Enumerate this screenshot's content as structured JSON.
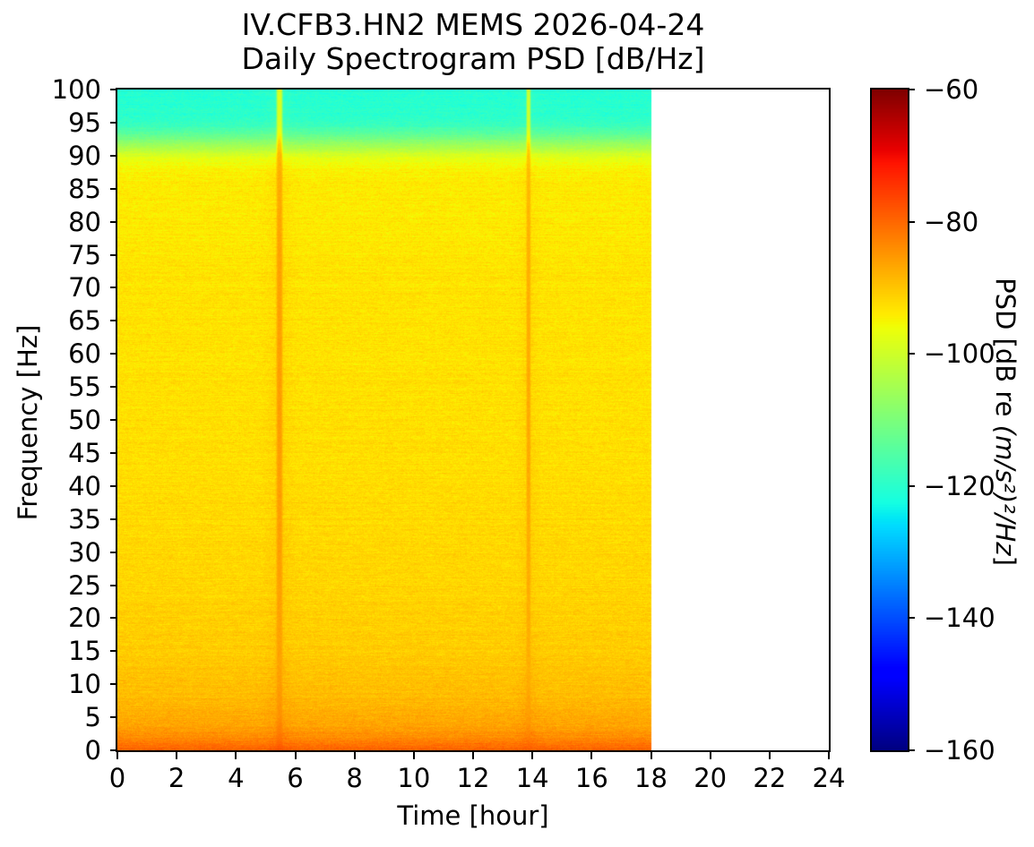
{
  "title": {
    "line1": "IV.CFB3.HN2 MEMS 2026-04-24",
    "line2": "Daily Spectrogram PSD [dB/Hz]"
  },
  "chart_data": {
    "type": "heatmap",
    "subtype": "spectrogram",
    "title": "IV.CFB3.HN2 MEMS 2026-04-24\nDaily Spectrogram PSD [dB/Hz]",
    "xlabel": "Time [hour]",
    "ylabel": "Frequency [Hz]",
    "colorbar_label": {
      "prefix": "PSD [dB re ",
      "math": "(m/s²)²/Hz",
      "suffix": "]"
    },
    "colormap": "jet",
    "xlim": [
      0,
      24
    ],
    "ylim": [
      0,
      100
    ],
    "clim": [
      -160,
      -60
    ],
    "x_ticks": [
      0,
      2,
      4,
      6,
      8,
      10,
      12,
      14,
      16,
      18,
      20,
      22,
      24
    ],
    "y_ticks": [
      0,
      5,
      10,
      15,
      20,
      25,
      30,
      35,
      40,
      45,
      50,
      55,
      60,
      65,
      70,
      75,
      80,
      85,
      90,
      95,
      100
    ],
    "colorbar_ticks": [
      {
        "value": -60,
        "label": "−60"
      },
      {
        "value": -80,
        "label": "−80"
      },
      {
        "value": -100,
        "label": "−100"
      },
      {
        "value": -120,
        "label": "−120"
      },
      {
        "value": -140,
        "label": "−140"
      },
      {
        "value": -160,
        "label": "−160"
      }
    ],
    "data_extent_hours": [
      0,
      18
    ],
    "background_profile": {
      "freq_hz": [
        0,
        0.8,
        2,
        4,
        8,
        15,
        25,
        45,
        70,
        85,
        87,
        88,
        89,
        89.8,
        90.5,
        91.7,
        93,
        94.6,
        95.8,
        100
      ],
      "psd_db": [
        -79.2,
        -81,
        -84,
        -86.5,
        -88.8,
        -90.6,
        -91.6,
        -92.5,
        -93.1,
        -93.8,
        -94.2,
        -95,
        -96.3,
        -98,
        -101,
        -106.5,
        -112.5,
        -118,
        -119.9,
        -120.6
      ]
    },
    "noise_db_sigma": 1.3,
    "events": [
      {
        "time_hour": 5.47,
        "sigma_hours": 0.085,
        "halo_boost_db": 1.2,
        "halo_sigma_hours": 0.28,
        "psd_profile": {
          "freq_hz": [
            0,
            2,
            5,
            12,
            30,
            50,
            75,
            87,
            90,
            91.5,
            93,
            94.5,
            100
          ],
          "psd_db": [
            -78.5,
            -82.5,
            -85.5,
            -87.3,
            -87,
            -86.8,
            -87.3,
            -88.5,
            -89.5,
            -91.5,
            -96,
            -99.3,
            -99.8
          ]
        }
      },
      {
        "time_hour": 13.87,
        "sigma_hours": 0.06,
        "halo_boost_db": 1.0,
        "halo_sigma_hours": 0.22,
        "psd_profile": {
          "freq_hz": [
            0,
            2,
            5,
            12,
            30,
            50,
            75,
            87,
            90,
            91.5,
            93,
            94.5,
            100
          ],
          "psd_db": [
            -79.5,
            -83.5,
            -86.5,
            -88.5,
            -88.2,
            -88,
            -88.5,
            -89.8,
            -91,
            -93,
            -97.5,
            -100.8,
            -101.5
          ]
        }
      }
    ]
  }
}
